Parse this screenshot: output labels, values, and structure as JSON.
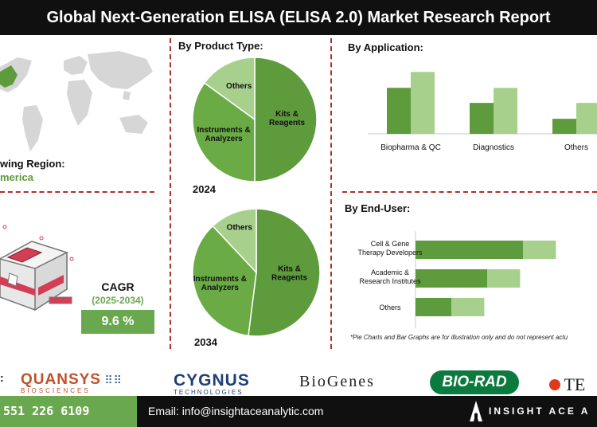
{
  "title": "Global Next-Generation ELISA (ELISA 2.0) Market Research Report",
  "region": {
    "label": "wing Region:",
    "value": "merica"
  },
  "cagr": {
    "label": "CAGR",
    "years": "(2025-2034)",
    "value": "9.6 %"
  },
  "sections": {
    "product_type": "By Product Type:",
    "application": "By Application:",
    "end_user": "By End-User:"
  },
  "note": "*Pie Charts and Bar Graphs are for illustration only and do not represent actu",
  "logos": {
    "quansys": "QUANSYS",
    "quansys_sub": "BIOSCIENCES",
    "cygnus": "CYGNUS",
    "cygnus_sub": "TECHNOLOGIES",
    "biogenes": "BioGenes",
    "biorad": "BIO-RAD",
    "te": "TE"
  },
  "footer": {
    "phone": "551 226 6109",
    "email": "Email: info@insightaceanalytic.com",
    "brand": "INSIGHT ACE A"
  },
  "colors": {
    "dark_green": "#5e9b3c",
    "light_green": "#a8d08d",
    "accent_red": "#b0302a"
  },
  "chart_data": [
    {
      "type": "pie",
      "year": "2024",
      "categories": [
        "Kits & Reagents",
        "Instruments & Analyzers",
        "Others"
      ],
      "values": [
        50,
        35,
        15
      ],
      "colors": [
        "#5e9b3c",
        "#6aab45",
        "#a8d08d"
      ]
    },
    {
      "type": "pie",
      "year": "2034",
      "categories": [
        "Kits & Reagents",
        "Instruments & Analyzers",
        "Others"
      ],
      "values": [
        52,
        36,
        12
      ],
      "colors": [
        "#5e9b3c",
        "#6aab45",
        "#a8d08d"
      ]
    },
    {
      "type": "bar",
      "orientation": "vertical",
      "categories": [
        "Biopharma & QC",
        "Diagnostics",
        "Others"
      ],
      "series": [
        {
          "values": [
            55,
            37,
            18
          ],
          "color": "#5e9b3c"
        },
        {
          "values": [
            74,
            55,
            37
          ],
          "color": "#a8d08d"
        }
      ]
    },
    {
      "type": "bar",
      "orientation": "horizontal-stacked",
      "categories": [
        "Cell & Gene Therapy Developers",
        "Academic & Research Institutes",
        "Others"
      ],
      "series": [
        {
          "values": [
            75,
            50,
            25
          ],
          "color": "#5e9b3c"
        },
        {
          "values": [
            98,
            73,
            48
          ],
          "color": "#a8d08d"
        }
      ]
    }
  ]
}
